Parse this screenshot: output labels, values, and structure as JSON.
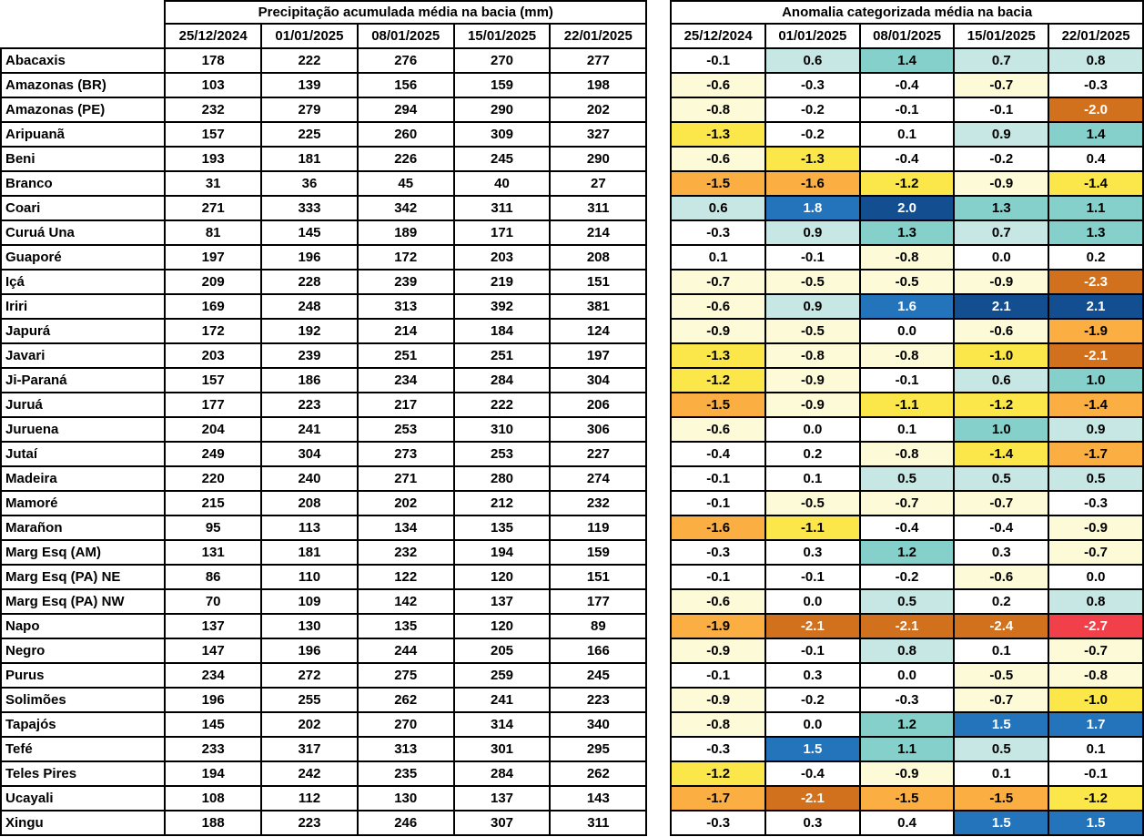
{
  "chart_data": [
    {
      "type": "table",
      "title": "Precipitação acumulada média na bacia (mm)",
      "columns": [
        "25/12/2024",
        "01/01/2025",
        "08/01/2025",
        "15/01/2025",
        "22/01/2025"
      ],
      "row_labels": [
        "Abacaxis",
        "Amazonas (BR)",
        "Amazonas (PE)",
        "Aripuanã",
        "Beni",
        "Branco",
        "Coari",
        "Curuá Una",
        "Guaporé",
        "Içá",
        "Iriri",
        "Japurá",
        "Javari",
        "Ji-Paraná",
        "Juruá",
        "Juruena",
        "Jutaí",
        "Madeira",
        "Mamoré",
        "Marañon",
        "Marg Esq (AM)",
        "Marg Esq (PA) NE",
        "Marg Esq (PA) NW",
        "Napo",
        "Negro",
        "Purus",
        "Solimões",
        "Tapajós",
        "Tefé",
        "Teles Pires",
        "Ucayali",
        "Xingu"
      ],
      "values": [
        [
          178,
          222,
          276,
          270,
          277
        ],
        [
          103,
          139,
          156,
          159,
          198
        ],
        [
          232,
          279,
          294,
          290,
          202
        ],
        [
          157,
          225,
          260,
          309,
          327
        ],
        [
          193,
          181,
          226,
          245,
          290
        ],
        [
          31,
          36,
          45,
          40,
          27
        ],
        [
          271,
          333,
          342,
          311,
          311
        ],
        [
          81,
          145,
          189,
          171,
          214
        ],
        [
          197,
          196,
          172,
          203,
          208
        ],
        [
          209,
          228,
          239,
          219,
          151
        ],
        [
          169,
          248,
          313,
          392,
          381
        ],
        [
          172,
          192,
          214,
          184,
          124
        ],
        [
          203,
          239,
          251,
          251,
          197
        ],
        [
          157,
          186,
          234,
          284,
          304
        ],
        [
          177,
          223,
          217,
          222,
          206
        ],
        [
          204,
          241,
          253,
          310,
          306
        ],
        [
          249,
          304,
          273,
          253,
          227
        ],
        [
          220,
          240,
          271,
          280,
          274
        ],
        [
          215,
          208,
          202,
          212,
          232
        ],
        [
          95,
          113,
          134,
          135,
          119
        ],
        [
          131,
          181,
          232,
          194,
          159
        ],
        [
          86,
          110,
          122,
          120,
          151
        ],
        [
          70,
          109,
          142,
          137,
          177
        ],
        [
          137,
          130,
          135,
          120,
          89
        ],
        [
          147,
          196,
          244,
          205,
          166
        ],
        [
          234,
          272,
          275,
          259,
          245
        ],
        [
          196,
          255,
          262,
          241,
          223
        ],
        [
          145,
          202,
          270,
          314,
          340
        ],
        [
          233,
          317,
          313,
          301,
          295
        ],
        [
          194,
          242,
          235,
          284,
          262
        ],
        [
          108,
          112,
          130,
          137,
          143
        ],
        [
          188,
          223,
          246,
          307,
          311
        ]
      ]
    },
    {
      "type": "heatmap",
      "title": "Anomalia categorizada média na bacia",
      "columns": [
        "25/12/2024",
        "01/01/2025",
        "08/01/2025",
        "15/01/2025",
        "22/01/2025"
      ],
      "row_labels": [
        "Abacaxis",
        "Amazonas (BR)",
        "Amazonas (PE)",
        "Aripuanã",
        "Beni",
        "Branco",
        "Coari",
        "Curuá Una",
        "Guaporé",
        "Içá",
        "Iriri",
        "Japurá",
        "Javari",
        "Ji-Paraná",
        "Juruá",
        "Juruena",
        "Jutaí",
        "Madeira",
        "Mamoré",
        "Marañon",
        "Marg Esq (AM)",
        "Marg Esq (PA) NE",
        "Marg Esq (PA) NW",
        "Napo",
        "Negro",
        "Purus",
        "Solimões",
        "Tapajós",
        "Tefé",
        "Teles Pires",
        "Ucayali",
        "Xingu"
      ],
      "values": [
        [
          "-0.1",
          "0.6",
          "1.4",
          "0.7",
          "0.8"
        ],
        [
          "-0.6",
          "-0.3",
          "-0.4",
          "-0.7",
          "-0.3"
        ],
        [
          "-0.8",
          "-0.2",
          "-0.1",
          "-0.1",
          "-2.0"
        ],
        [
          "-1.3",
          "-0.2",
          "0.1",
          "0.9",
          "1.4"
        ],
        [
          "-0.6",
          "-1.3",
          "-0.4",
          "-0.2",
          "0.4"
        ],
        [
          "-1.5",
          "-1.6",
          "-1.2",
          "-0.9",
          "-1.4"
        ],
        [
          "0.6",
          "1.8",
          "2.0",
          "1.3",
          "1.1"
        ],
        [
          "-0.3",
          "0.9",
          "1.3",
          "0.7",
          "1.3"
        ],
        [
          "0.1",
          "-0.1",
          "-0.8",
          "0.0",
          "0.2"
        ],
        [
          "-0.7",
          "-0.5",
          "-0.5",
          "-0.9",
          "-2.3"
        ],
        [
          "-0.6",
          "0.9",
          "1.6",
          "2.1",
          "2.1"
        ],
        [
          "-0.9",
          "-0.5",
          "0.0",
          "-0.6",
          "-1.9"
        ],
        [
          "-1.3",
          "-0.8",
          "-0.8",
          "-1.0",
          "-2.1"
        ],
        [
          "-1.2",
          "-0.9",
          "-0.1",
          "0.6",
          "1.0"
        ],
        [
          "-1.5",
          "-0.9",
          "-1.1",
          "-1.2",
          "-1.4"
        ],
        [
          "-0.6",
          "0.0",
          "0.1",
          "1.0",
          "0.9"
        ],
        [
          "-0.4",
          "0.2",
          "-0.8",
          "-1.4",
          "-1.7"
        ],
        [
          "-0.1",
          "0.1",
          "0.5",
          "0.5",
          "0.5"
        ],
        [
          "-0.1",
          "-0.5",
          "-0.7",
          "-0.7",
          "-0.3"
        ],
        [
          "-1.6",
          "-1.1",
          "-0.4",
          "-0.4",
          "-0.9"
        ],
        [
          "-0.3",
          "0.3",
          "1.2",
          "0.3",
          "-0.7"
        ],
        [
          "-0.1",
          "-0.1",
          "-0.2",
          "-0.6",
          "0.0"
        ],
        [
          "-0.6",
          "0.0",
          "0.5",
          "0.2",
          "0.8"
        ],
        [
          "-1.9",
          "-2.1",
          "-2.1",
          "-2.4",
          "-2.7"
        ],
        [
          "-0.9",
          "-0.1",
          "0.8",
          "0.1",
          "-0.7"
        ],
        [
          "-0.1",
          "0.3",
          "0.0",
          "-0.5",
          "-0.8"
        ],
        [
          "-0.9",
          "-0.2",
          "-0.3",
          "-0.7",
          "-1.0"
        ],
        [
          "-0.8",
          "0.0",
          "1.2",
          "1.5",
          "1.7"
        ],
        [
          "-0.3",
          "1.5",
          "1.1",
          "0.5",
          "0.1"
        ],
        [
          "-1.2",
          "-0.4",
          "-0.9",
          "0.1",
          "-0.1"
        ],
        [
          "-1.7",
          "-2.1",
          "-1.5",
          "-1.5",
          "-1.2"
        ],
        [
          "-0.3",
          "0.3",
          "0.4",
          "1.5",
          "1.5"
        ]
      ],
      "cell_categories": [
        [
          "p0",
          "p1",
          "p2",
          "p1",
          "p1"
        ],
        [
          "n1",
          "p0",
          "p0",
          "n1",
          "p0"
        ],
        [
          "n1",
          "p0",
          "p0",
          "p0",
          "n4"
        ],
        [
          "n2",
          "p0",
          "p0",
          "p1",
          "p2"
        ],
        [
          "n1",
          "n2",
          "p0",
          "p0",
          "p0"
        ],
        [
          "n3",
          "n3",
          "n2",
          "n1",
          "n2"
        ],
        [
          "p1",
          "p3",
          "p4",
          "p2",
          "p2"
        ],
        [
          "p0",
          "p1",
          "p2",
          "p1",
          "p2"
        ],
        [
          "p0",
          "p0",
          "n1",
          "p0",
          "p0"
        ],
        [
          "n1",
          "n1",
          "n1",
          "n1",
          "n4"
        ],
        [
          "n1",
          "p1",
          "p3",
          "p4",
          "p4"
        ],
        [
          "n1",
          "n1",
          "p0",
          "n1",
          "n3"
        ],
        [
          "n2",
          "n1",
          "n1",
          "n2",
          "n4"
        ],
        [
          "n2",
          "n1",
          "p0",
          "p1",
          "p2"
        ],
        [
          "n3",
          "n1",
          "n2",
          "n2",
          "n3"
        ],
        [
          "n1",
          "p0",
          "p0",
          "p2",
          "p1"
        ],
        [
          "p0",
          "p0",
          "n1",
          "n2",
          "n3"
        ],
        [
          "p0",
          "p0",
          "p1",
          "p1",
          "p1"
        ],
        [
          "p0",
          "n1",
          "n1",
          "n1",
          "p0"
        ],
        [
          "n3",
          "n2",
          "p0",
          "p0",
          "n1"
        ],
        [
          "p0",
          "p0",
          "p2",
          "p0",
          "n1"
        ],
        [
          "p0",
          "p0",
          "p0",
          "n1",
          "p0"
        ],
        [
          "n1",
          "p0",
          "p1",
          "p0",
          "p1"
        ],
        [
          "n3",
          "n4",
          "n4",
          "n4",
          "n5"
        ],
        [
          "n1",
          "p0",
          "p1",
          "p0",
          "n1"
        ],
        [
          "p0",
          "p0",
          "p0",
          "n1",
          "n1"
        ],
        [
          "n1",
          "p0",
          "p0",
          "n1",
          "n2"
        ],
        [
          "n1",
          "p0",
          "p2",
          "p3",
          "p3"
        ],
        [
          "p0",
          "p3",
          "p2",
          "p1",
          "p0"
        ],
        [
          "n2",
          "p0",
          "n1",
          "p0",
          "p0"
        ],
        [
          "n3",
          "n4",
          "n3",
          "n3",
          "n2"
        ],
        [
          "p0",
          "p0",
          "p0",
          "p3",
          "p3"
        ]
      ],
      "palette": {
        "p0": {
          "bg": "#FFFFFF",
          "fg": "#000000"
        },
        "p1": {
          "bg": "#C7E7E4",
          "fg": "#000000"
        },
        "p2": {
          "bg": "#85D0CA",
          "fg": "#000000"
        },
        "p3": {
          "bg": "#2374BB",
          "fg": "#FFFFFF"
        },
        "p4": {
          "bg": "#134F90",
          "fg": "#FFFFFF"
        },
        "n1": {
          "bg": "#FDFAD7",
          "fg": "#000000"
        },
        "n2": {
          "bg": "#FBE74A",
          "fg": "#000000"
        },
        "n3": {
          "bg": "#FBAE41",
          "fg": "#000000"
        },
        "n4": {
          "bg": "#D2711D",
          "fg": "#FFFFFF"
        },
        "n5": {
          "bg": "#F1404A",
          "fg": "#FFFFFF"
        }
      }
    }
  ]
}
